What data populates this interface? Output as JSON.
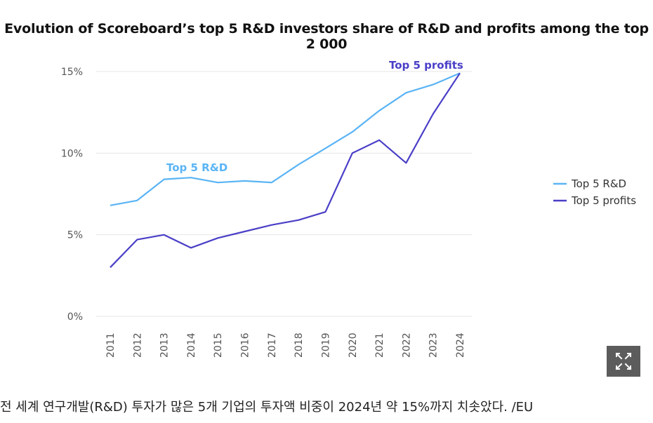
{
  "chart_data": {
    "type": "line",
    "title": "Evolution of Scoreboard’s top 5 R&D investors share of R&D and profits among the top 2 000",
    "xlabel": "",
    "ylabel": "",
    "categories": [
      "2011",
      "2012",
      "2013",
      "2014",
      "2015",
      "2016",
      "2017",
      "2018",
      "2019",
      "2020",
      "2021",
      "2022",
      "2023",
      "2024"
    ],
    "y_ticks": [
      "0%",
      "5%",
      "10%",
      "15%"
    ],
    "ylim": [
      0,
      15
    ],
    "grid": true,
    "legend_position": "right",
    "series": [
      {
        "name": "Top 5 R&D",
        "color": "#5ab4f5",
        "values": [
          6.8,
          7.1,
          8.4,
          8.5,
          8.2,
          8.3,
          8.2,
          9.3,
          10.3,
          11.3,
          12.6,
          13.7,
          14.2,
          14.9
        ]
      },
      {
        "name": "Top 5 profits",
        "color": "#4a3fc7",
        "values": [
          3.0,
          4.7,
          5.0,
          4.2,
          4.8,
          5.2,
          5.6,
          5.9,
          6.4,
          10.0,
          10.8,
          9.4,
          12.4,
          14.9
        ]
      }
    ],
    "annotations": [
      {
        "text": "Top 5 R&D",
        "series": "Top 5 R&D",
        "near_category": "2014"
      },
      {
        "text": "Top 5 profits",
        "series": "Top 5 profits",
        "near_category": "2024"
      }
    ]
  },
  "expand_button": {
    "icon": "expand-icon"
  },
  "caption": "전 세계 연구개발(R&D) 투자가 많은 5개 기업의 투자액 비중이 2024년 약 15%까지 치솟았다. /EU"
}
